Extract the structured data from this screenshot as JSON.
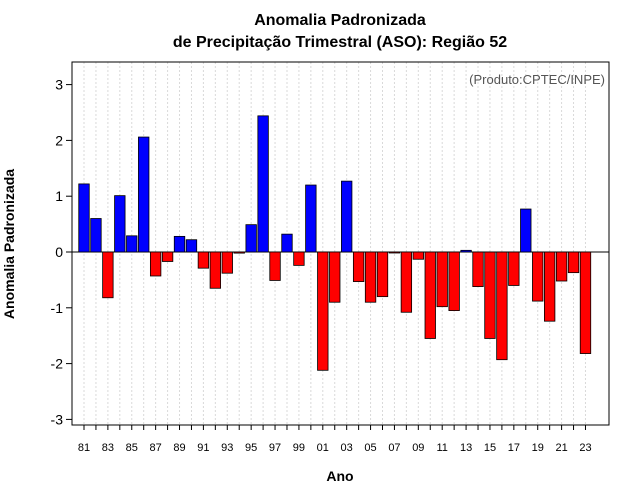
{
  "chart_data": {
    "type": "bar",
    "title": "Anomalia Padronizada",
    "subtitle": "de Precipitação Trimestral (ASO): Região 52",
    "xlabel": "Ano",
    "ylabel": "Anomalia Padronizada",
    "annotation": "(Produto:CPTEC/INPE)",
    "ylim": [
      -3.1,
      3.4
    ],
    "yticks": [
      -3,
      -2,
      -1,
      0,
      1,
      2,
      3
    ],
    "xtick_labels": [
      "81",
      "83",
      "85",
      "87",
      "89",
      "91",
      "93",
      "95",
      "97",
      "99",
      "01",
      "03",
      "05",
      "07",
      "09",
      "11",
      "13",
      "15",
      "17",
      "19",
      "21",
      "23"
    ],
    "categories": [
      "1981",
      "1982",
      "1983",
      "1984",
      "1985",
      "1986",
      "1987",
      "1988",
      "1989",
      "1990",
      "1991",
      "1992",
      "1993",
      "1994",
      "1995",
      "1996",
      "1997",
      "1998",
      "1999",
      "2000",
      "2001",
      "2002",
      "2003",
      "2004",
      "2005",
      "2006",
      "2007",
      "2008",
      "2009",
      "2010",
      "2011",
      "2012",
      "2013",
      "2014",
      "2015",
      "2016",
      "2017",
      "2018",
      "2019",
      "2020",
      "2021",
      "2022",
      "2023"
    ],
    "values": [
      1.22,
      0.6,
      -0.82,
      1.01,
      0.29,
      2.06,
      -0.43,
      -0.17,
      0.28,
      0.22,
      -0.29,
      -0.65,
      -0.38,
      -0.02,
      0.49,
      2.44,
      -0.51,
      0.32,
      -0.24,
      1.2,
      -2.12,
      -0.9,
      1.27,
      -0.53,
      -0.9,
      -0.8,
      -0.01,
      -1.08,
      -0.13,
      -1.55,
      -0.98,
      -1.05,
      0.03,
      -0.62,
      -1.55,
      -1.93,
      -0.6,
      0.77,
      -0.88,
      -1.24,
      -0.52,
      -0.37,
      -1.82
    ],
    "positive_color": "#0000ff",
    "negative_color": "#ff0000",
    "grid": true
  }
}
